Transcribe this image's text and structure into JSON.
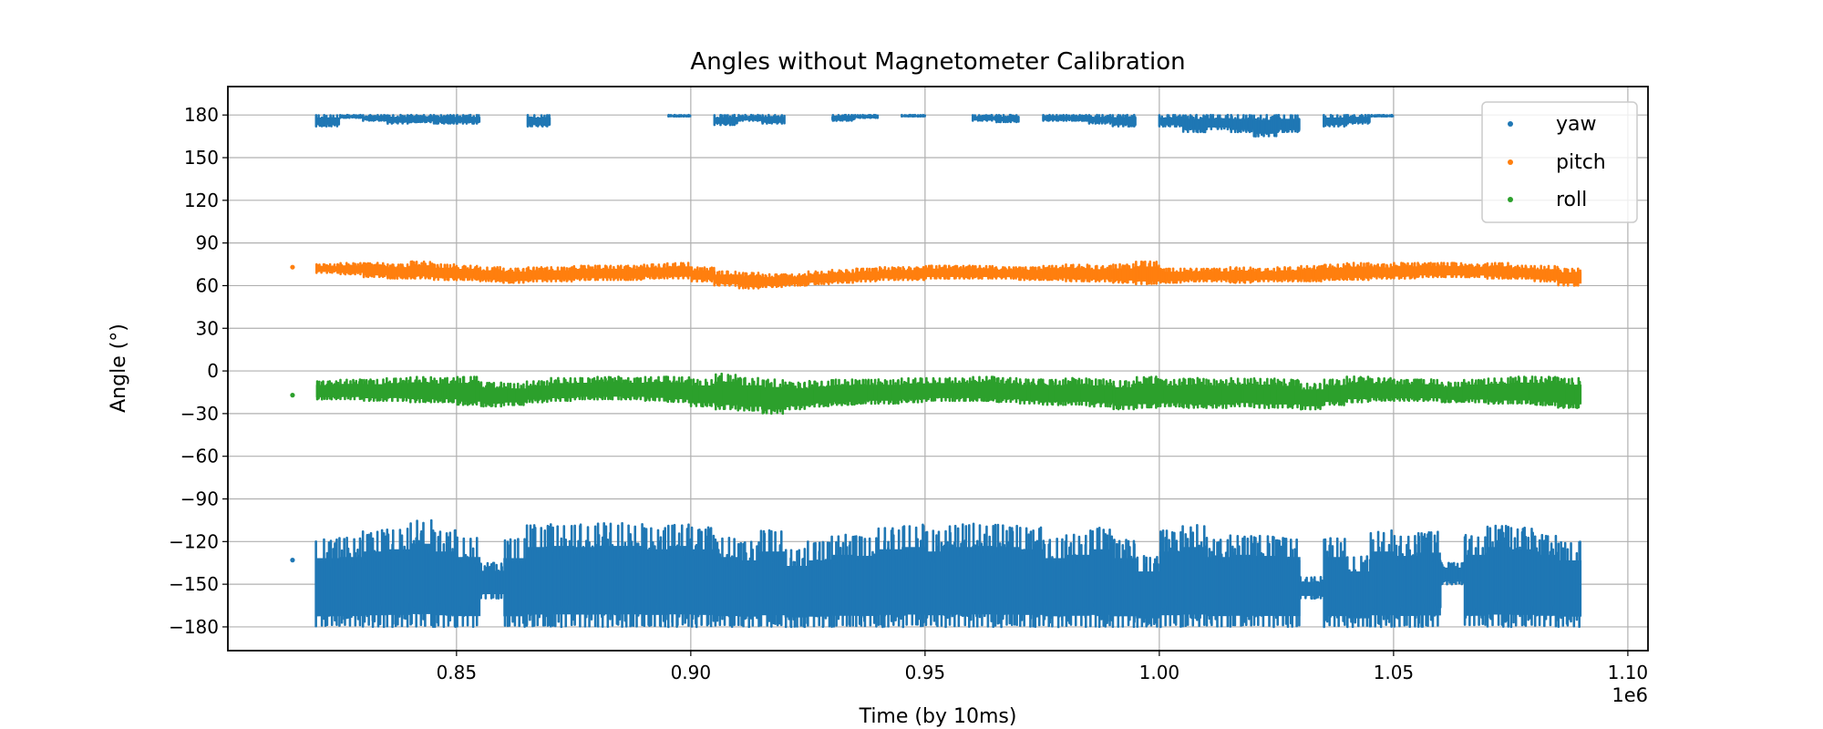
{
  "chart_data": {
    "type": "scatter",
    "title": "Angles without Magnetometer Calibration",
    "xlabel": "Time (by 10ms)",
    "ylabel": "Angle (°)",
    "x_offset_label": "1e6",
    "xlim": [
      0.8012,
      1.1043
    ],
    "ylim": [
      -196.7,
      200
    ],
    "xticks": [
      0.85,
      0.9,
      0.95,
      1.0,
      1.05,
      1.1
    ],
    "xtick_labels": [
      "0.85",
      "0.90",
      "0.95",
      "1.00",
      "1.05",
      "1.10"
    ],
    "yticks": [
      180,
      150,
      120,
      90,
      60,
      30,
      0,
      -30,
      -60,
      -90,
      -120,
      -150,
      -180
    ],
    "ytick_labels": [
      "180",
      "150",
      "120",
      "90",
      "60",
      "30",
      "0",
      "−30",
      "−60",
      "−90",
      "−120",
      "−150",
      "−180"
    ],
    "grid": true,
    "legend_position": "top-right",
    "note": "Dense scatter summarized as per-bin min/max envelopes; x in units of 1e6, bin width 0.005",
    "bin_width": 0.005,
    "x_bins": [
      0.8225,
      0.8275,
      0.8325,
      0.8375,
      0.8425,
      0.8475,
      0.8525,
      0.8575,
      0.8625,
      0.8675,
      0.8725,
      0.8775,
      0.8825,
      0.8875,
      0.8925,
      0.8975,
      0.9025,
      0.9075,
      0.9125,
      0.9175,
      0.9225,
      0.9275,
      0.9325,
      0.9375,
      0.9425,
      0.9475,
      0.9525,
      0.9575,
      0.9625,
      0.9675,
      0.9725,
      0.9775,
      0.9825,
      0.9875,
      0.9925,
      0.9975,
      1.0025,
      1.0075,
      1.0125,
      1.0175,
      1.0225,
      1.0275,
      1.0325,
      1.0375,
      1.0425,
      1.0475,
      1.0525,
      1.0575,
      1.0625,
      1.0675,
      1.0725,
      1.0775,
      1.0825,
      1.0875
    ],
    "series": [
      {
        "name": "yaw",
        "color": "#1f77b4",
        "outliers": [
          [
            0.815,
            -133
          ]
        ],
        "bands": [
          {
            "min": [
              -180,
              -180,
              -180,
              -180,
              -180,
              -180,
              -180,
              -160,
              -180,
              -180,
              -180,
              -180,
              -180,
              -180,
              -180,
              -180,
              -180,
              -180,
              -180,
              -180,
              -180,
              -180,
              -180,
              -180,
              -180,
              -180,
              -180,
              -180,
              -180,
              -180,
              -180,
              -180,
              -180,
              -180,
              -180,
              -180,
              -180,
              -180,
              -180,
              -180,
              -180,
              -180,
              -160,
              -180,
              -180,
              -180,
              -180,
              -180,
              -150,
              -180,
              -180,
              -180,
              -180,
              -180
            ],
            "max": [
              -118,
              -117,
              -112,
              -110,
              -105,
              -112,
              -117,
              -135,
              -118,
              -108,
              -107,
              -108,
              -107,
              -107,
              -110,
              -107,
              -110,
              -117,
              -120,
              -112,
              -125,
              -120,
              -115,
              -116,
              -110,
              -108,
              -112,
              -108,
              -107,
              -108,
              -110,
              -118,
              -115,
              -110,
              -118,
              -130,
              -112,
              -108,
              -117,
              -115,
              -116,
              -117,
              -145,
              -117,
              -130,
              -112,
              -116,
              -113,
              -135,
              -115,
              -108,
              -110,
              -115,
              -120
            ]
          },
          {
            "min": [
              172,
              178,
              176,
              174,
              175,
              174,
              174,
              null,
              null,
              172,
              null,
              null,
              null,
              null,
              null,
              179,
              null,
              173,
              176,
              174,
              null,
              null,
              176,
              178,
              null,
              179,
              null,
              null,
              176,
              175,
              null,
              176,
              176,
              174,
              172,
              null,
              172,
              168,
              170,
              168,
              165,
              168,
              null,
              172,
              174,
              179,
              null,
              null,
              null,
              null,
              null,
              null,
              null,
              null
            ],
            "max": [
              180,
              180,
              180,
              180,
              180,
              180,
              180,
              null,
              null,
              180,
              null,
              null,
              null,
              null,
              null,
              180,
              null,
              180,
              180,
              180,
              null,
              null,
              180,
              180,
              null,
              180,
              null,
              null,
              180,
              180,
              null,
              180,
              180,
              180,
              180,
              null,
              180,
              180,
              180,
              180,
              180,
              180,
              null,
              180,
              180,
              180,
              null,
              null,
              null,
              null,
              null,
              null,
              null,
              null
            ]
          }
        ]
      },
      {
        "name": "pitch",
        "color": "#ff7f0e",
        "outliers": [
          [
            0.815,
            73
          ]
        ],
        "bands": [
          {
            "min": [
              69,
              68,
              66,
              65,
              65,
              64,
              64,
              63,
              62,
              63,
              63,
              64,
              64,
              64,
              65,
              65,
              63,
              60,
              58,
              59,
              60,
              61,
              62,
              63,
              64,
              64,
              65,
              65,
              65,
              65,
              64,
              64,
              63,
              63,
              62,
              61,
              62,
              63,
              63,
              62,
              63,
              63,
              63,
              64,
              64,
              65,
              65,
              66,
              66,
              66,
              65,
              65,
              63,
              60
            ],
            "max": [
              75,
              76,
              76,
              75,
              77,
              75,
              74,
              73,
              72,
              73,
              73,
              74,
              74,
              74,
              75,
              76,
              73,
              70,
              69,
              68,
              68,
              70,
              71,
              72,
              73,
              73,
              74,
              74,
              74,
              73,
              73,
              74,
              75,
              74,
              75,
              77,
              72,
              72,
              72,
              73,
              72,
              73,
              74,
              75,
              76,
              75,
              76,
              76,
              76,
              75,
              76,
              74,
              74,
              72
            ]
          }
        ]
      },
      {
        "name": "roll",
        "color": "#2ca02c",
        "outliers": [
          [
            0.815,
            -17
          ]
        ],
        "bands": [
          {
            "min": [
              -20,
              -20,
              -21,
              -21,
              -22,
              -22,
              -24,
              -25,
              -24,
              -22,
              -21,
              -20,
              -20,
              -20,
              -21,
              -22,
              -25,
              -27,
              -28,
              -30,
              -27,
              -25,
              -24,
              -23,
              -23,
              -22,
              -21,
              -21,
              -21,
              -22,
              -23,
              -24,
              -24,
              -25,
              -27,
              -26,
              -25,
              -26,
              -26,
              -25,
              -26,
              -26,
              -27,
              -24,
              -22,
              -21,
              -21,
              -21,
              -22,
              -22,
              -23,
              -23,
              -24,
              -26
            ],
            "max": [
              -7,
              -6,
              -6,
              -5,
              -4,
              -5,
              -4,
              -8,
              -9,
              -7,
              -5,
              -5,
              -4,
              -5,
              -4,
              -4,
              -6,
              -2,
              -5,
              -6,
              -8,
              -7,
              -6,
              -6,
              -6,
              -5,
              -5,
              -5,
              -4,
              -5,
              -6,
              -6,
              -5,
              -6,
              -7,
              -4,
              -6,
              -5,
              -6,
              -5,
              -5,
              -6,
              -9,
              -6,
              -4,
              -5,
              -6,
              -6,
              -8,
              -6,
              -5,
              -4,
              -4,
              -5
            ]
          }
        ]
      }
    ]
  }
}
